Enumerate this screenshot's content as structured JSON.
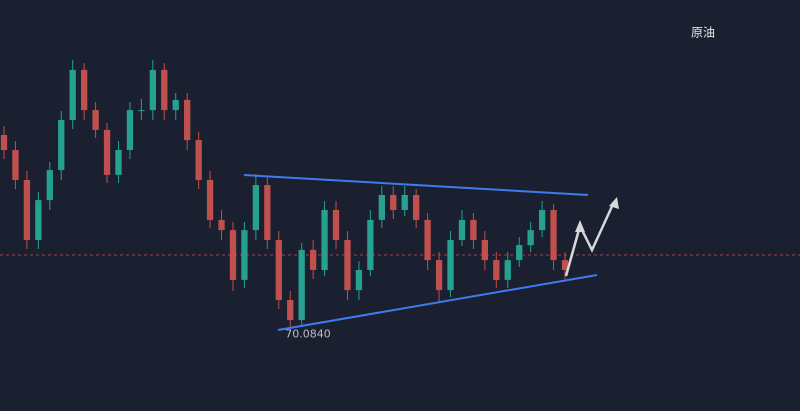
{
  "chart_data": {
    "type": "candlestick",
    "title": "原油",
    "ylim": [
      67.3,
      81.0
    ],
    "up_color": "#26a08f",
    "down_color": "#c0504d",
    "price_line": 72.5,
    "price_line_color": "#a0444a",
    "low_annotation": {
      "value": 70.084,
      "label": "70.0840"
    },
    "ohlc": [
      [
        76.5,
        76.8,
        75.7,
        76.0
      ],
      [
        76.0,
        76.3,
        74.7,
        75.0
      ],
      [
        75.0,
        75.3,
        72.7,
        73.0
      ],
      [
        73.0,
        74.6,
        72.7,
        74.33
      ],
      [
        74.33,
        75.6,
        74.0,
        75.33
      ],
      [
        75.33,
        77.3,
        75.0,
        77.0
      ],
      [
        77.0,
        79.0,
        76.7,
        78.67
      ],
      [
        78.67,
        78.9,
        77.0,
        77.33
      ],
      [
        77.33,
        77.6,
        76.4,
        76.67
      ],
      [
        76.67,
        76.9,
        74.9,
        75.17
      ],
      [
        75.17,
        76.3,
        74.9,
        76.0
      ],
      [
        76.0,
        77.6,
        75.7,
        77.33
      ],
      [
        77.33,
        77.7,
        77.0,
        77.33
      ],
      [
        77.33,
        79.0,
        77.0,
        78.67
      ],
      [
        78.67,
        78.9,
        77.0,
        77.33
      ],
      [
        77.33,
        77.9,
        77.0,
        77.67
      ],
      [
        77.67,
        77.9,
        76.0,
        76.33
      ],
      [
        76.33,
        76.6,
        74.7,
        75.0
      ],
      [
        75.0,
        75.3,
        73.4,
        73.67
      ],
      [
        73.67,
        74.0,
        73.0,
        73.33
      ],
      [
        73.33,
        73.6,
        71.3,
        71.67
      ],
      [
        71.67,
        73.6,
        71.4,
        73.33
      ],
      [
        73.33,
        75.2,
        73.0,
        74.83
      ],
      [
        74.83,
        75.1,
        72.7,
        73.0
      ],
      [
        73.0,
        73.3,
        70.7,
        71.0
      ],
      [
        71.0,
        71.3,
        70.084,
        70.33
      ],
      [
        70.33,
        72.9,
        70.1,
        72.67
      ],
      [
        72.67,
        73.0,
        71.7,
        72.0
      ],
      [
        72.0,
        74.3,
        71.8,
        74.0
      ],
      [
        74.0,
        74.3,
        72.7,
        73.0
      ],
      [
        73.0,
        73.3,
        71.0,
        71.33
      ],
      [
        71.33,
        72.3,
        71.0,
        72.0
      ],
      [
        72.0,
        74.0,
        71.8,
        73.67
      ],
      [
        73.67,
        74.8,
        73.4,
        74.5
      ],
      [
        74.5,
        74.8,
        73.7,
        74.0
      ],
      [
        74.0,
        74.8,
        73.8,
        74.5
      ],
      [
        74.5,
        74.7,
        73.4,
        73.67
      ],
      [
        73.67,
        73.9,
        72.0,
        72.33
      ],
      [
        72.33,
        72.6,
        70.9,
        71.33
      ],
      [
        71.33,
        73.3,
        71.1,
        73.0
      ],
      [
        73.0,
        74.0,
        72.8,
        73.67
      ],
      [
        73.67,
        73.9,
        72.7,
        73.0
      ],
      [
        73.0,
        73.3,
        72.0,
        72.33
      ],
      [
        72.33,
        72.6,
        71.4,
        71.67
      ],
      [
        71.67,
        72.6,
        71.4,
        72.33
      ],
      [
        72.33,
        73.1,
        72.1,
        72.83
      ],
      [
        72.83,
        73.6,
        72.6,
        73.33
      ],
      [
        73.33,
        74.3,
        73.1,
        74.0
      ],
      [
        74.0,
        74.2,
        72.0,
        72.33
      ],
      [
        72.33,
        72.6,
        71.7,
        72.0
      ]
    ]
  }
}
